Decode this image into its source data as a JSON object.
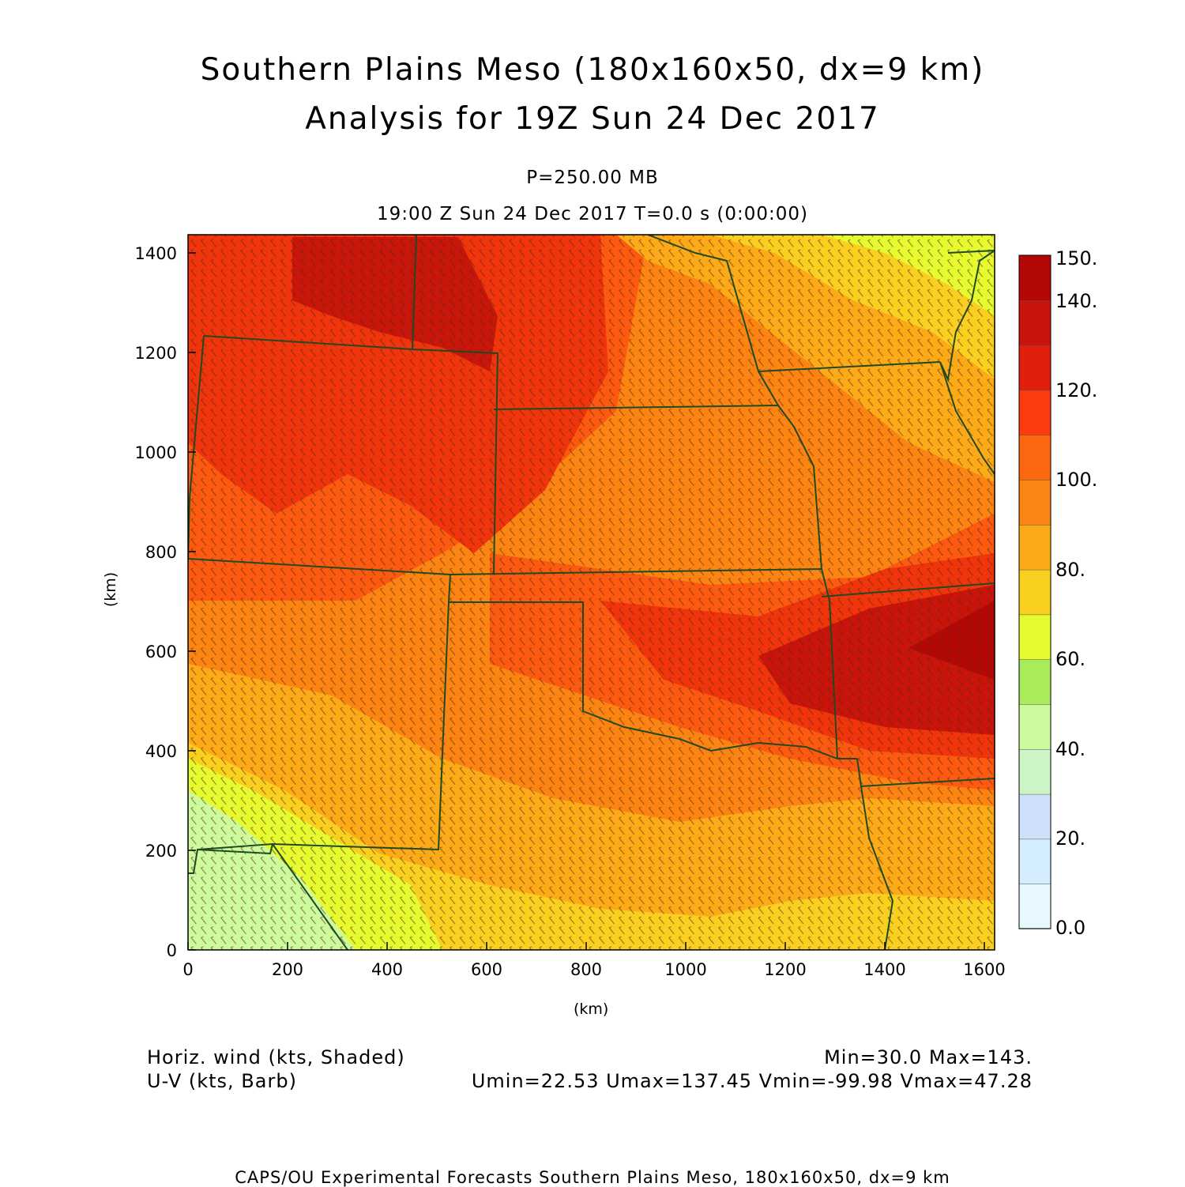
{
  "header": {
    "title_line1": "Southern Plains Meso (180x160x50, dx=9 km)",
    "title_line2": "Analysis for 19Z Sun 24 Dec 2017",
    "level": "P=250.00 MB",
    "time_info": "19:00 Z Sun 24 Dec 2017    T=0.0 s (0:00:00)"
  },
  "axes": {
    "x_label": "(km)",
    "y_label": "(km)",
    "x_ticks": [
      "0",
      "200",
      "400",
      "600",
      "800",
      "1000",
      "1200",
      "1400",
      "1600"
    ],
    "y_ticks": [
      "0",
      "200",
      "400",
      "600",
      "800",
      "1000",
      "1200",
      "1400"
    ],
    "x_range": [
      0,
      1620
    ],
    "y_range": [
      0,
      1440
    ]
  },
  "colorbar": {
    "labels": [
      "0.0",
      "20.",
      "40.",
      "60.",
      "80.",
      "100.",
      "120.",
      "140.",
      "150."
    ],
    "colors": [
      "#e8f8ff",
      "#d4eeff",
      "#d0e0fa",
      "#ccf4c4",
      "#ccfa9c",
      "#a8ec5c",
      "#e6fa30",
      "#fad020",
      "#fcaa18",
      "#fc8412",
      "#fc6810",
      "#fc3c0e",
      "#e0200c",
      "#c8140a",
      "#b40806"
    ],
    "range": [
      0,
      150
    ]
  },
  "legend": {
    "field1": "Horiz. wind (kts, Shaded)",
    "field2": "U-V (kts, Barb)",
    "minmax": "Min=30.0 Max=143.",
    "uv_minmax": "Umin=22.53 Umax=137.45 Vmin=-99.98 Vmax=47.28"
  },
  "footer": "CAPS/OU Experimental Forecasts  Southern Plains Meso, 180x160x50, dx=9 km"
}
